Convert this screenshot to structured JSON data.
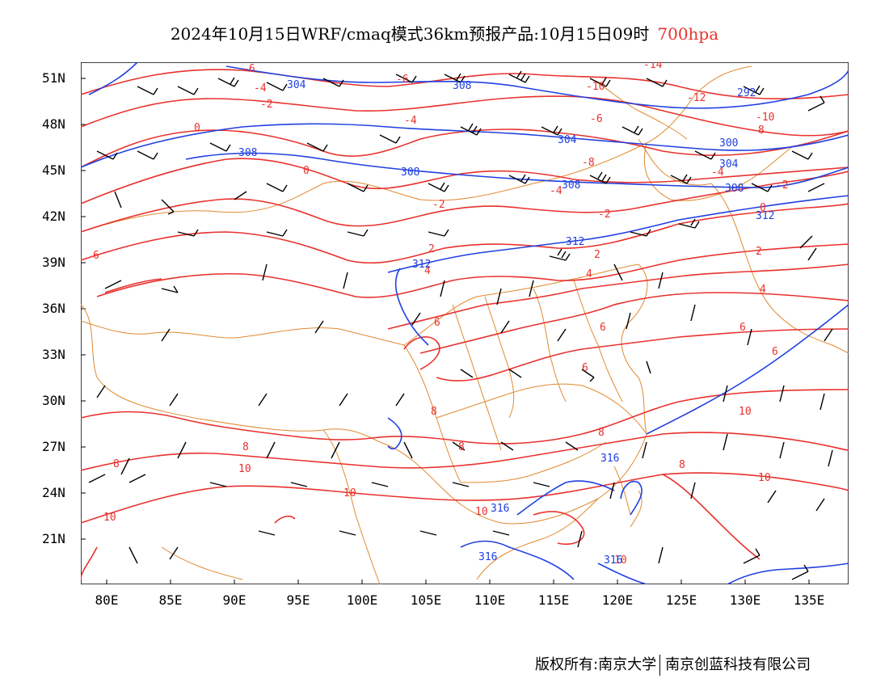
{
  "title": {
    "main": "2024年10月15日WRF/cmaq模式36km预报产品:10月15日09时",
    "level": "700hpa"
  },
  "lat_labels": [
    "51N",
    "48N",
    "45N",
    "42N",
    "39N",
    "36N",
    "33N",
    "30N",
    "27N",
    "24N",
    "21N"
  ],
  "lon_labels": [
    "80E",
    "85E",
    "90E",
    "95E",
    "100E",
    "105E",
    "110E",
    "115E",
    "120E",
    "125E",
    "130E",
    "135E"
  ],
  "footer": {
    "left": "版权所有:南京大学",
    "right": "南京创蓝科技有限公司"
  },
  "colors": {
    "temperature": "#e8322e",
    "geopotential": "#2040e0",
    "border": "#e08a30",
    "wind": "#000000"
  },
  "temp_labels": [
    "-14",
    "-12",
    "-10",
    "-8",
    "-6",
    "-4",
    "-2",
    "0",
    "2",
    "4",
    "6",
    "8",
    "10"
  ],
  "height_labels": [
    "292",
    "300",
    "304",
    "308",
    "312",
    "316"
  ]
}
